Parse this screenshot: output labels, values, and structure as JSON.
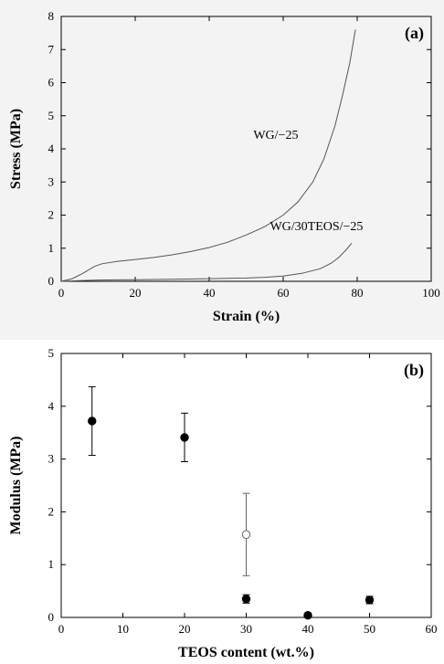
{
  "chart_data": [
    {
      "type": "line",
      "panel_label": "(a)",
      "xlabel": "Strain (%)",
      "ylabel": "Stress (MPa)",
      "xlim": [
        0,
        100
      ],
      "ylim": [
        0,
        8
      ],
      "xticks": [
        0,
        20,
        40,
        60,
        80,
        100
      ],
      "yticks": [
        0,
        1,
        2,
        3,
        4,
        5,
        6,
        7,
        8
      ],
      "grid": false,
      "series": [
        {
          "name": "WG/−25",
          "x": [
            0,
            3,
            6,
            9,
            11,
            15,
            20,
            25,
            30,
            35,
            40,
            45,
            50,
            55,
            60,
            64,
            68,
            71,
            74,
            76,
            78,
            79.5
          ],
          "y": [
            0,
            0.08,
            0.25,
            0.45,
            0.53,
            0.6,
            0.66,
            0.72,
            0.8,
            0.9,
            1.02,
            1.18,
            1.4,
            1.65,
            2.0,
            2.4,
            3.0,
            3.7,
            4.7,
            5.6,
            6.6,
            7.6
          ]
        },
        {
          "name": "WG/30TEOS/−25",
          "x": [
            0,
            5,
            10,
            20,
            30,
            40,
            50,
            55,
            60,
            65,
            70,
            73,
            75,
            77,
            78.5
          ],
          "y": [
            0,
            0.02,
            0.04,
            0.05,
            0.06,
            0.08,
            0.1,
            0.12,
            0.16,
            0.24,
            0.38,
            0.55,
            0.72,
            0.95,
            1.15
          ]
        }
      ],
      "annotations": [
        {
          "text": "WG/−25",
          "x": 58,
          "y": 4.3
        },
        {
          "text": "WG/30TEOS/−25",
          "x": 69,
          "y": 1.55
        }
      ]
    },
    {
      "type": "scatter",
      "panel_label": "(b)",
      "xlabel": "TEOS content (wt.%)",
      "ylabel": "Modulus (MPa)",
      "xlim": [
        0,
        60
      ],
      "ylim": [
        0,
        5
      ],
      "xticks": [
        0,
        10,
        20,
        30,
        40,
        50,
        60
      ],
      "yticks": [
        0,
        1,
        2,
        3,
        4,
        5
      ],
      "grid": false,
      "points": [
        {
          "x": 5,
          "y": 3.72,
          "err": 0.65,
          "filled": true
        },
        {
          "x": 20,
          "y": 3.41,
          "err": 0.46,
          "filled": true
        },
        {
          "x": 30,
          "y": 1.57,
          "err": 0.78,
          "filled": false
        },
        {
          "x": 30,
          "y": 0.35,
          "err": 0.08,
          "filled": true
        },
        {
          "x": 40,
          "y": 0.04,
          "err": 0.04,
          "filled": true
        },
        {
          "x": 50,
          "y": 0.33,
          "err": 0.07,
          "filled": true
        }
      ]
    }
  ]
}
